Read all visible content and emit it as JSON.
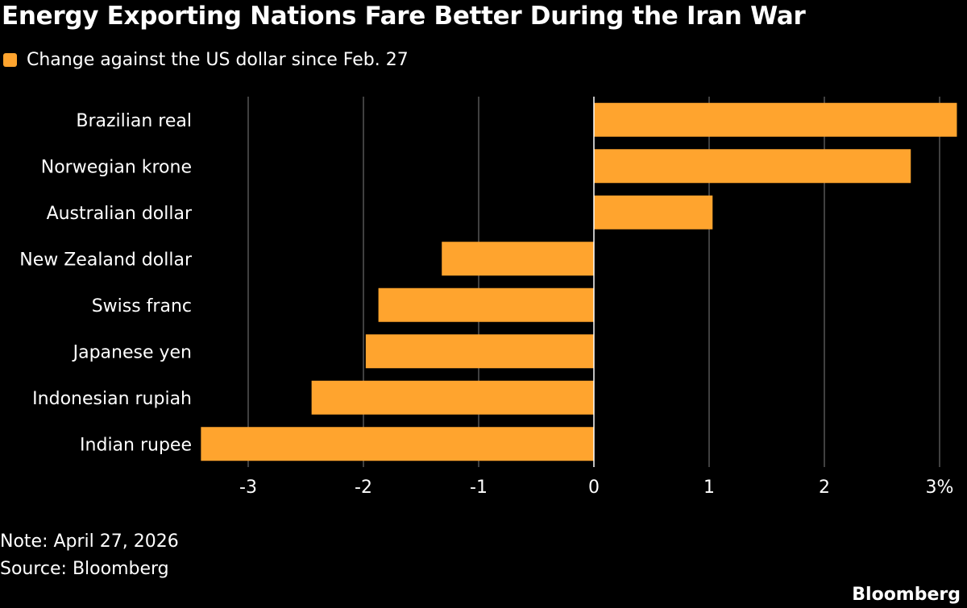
{
  "title": "Energy Exporting Nations Fare Better During the Iran War",
  "legend_label": "Change against the US dollar since Feb. 27",
  "note": "Note: April 27, 2026",
  "source": "Source: Bloomberg",
  "logo": "Bloomberg",
  "colors": {
    "bar": "#ffa42e",
    "background": "#000000",
    "grid": "#555555"
  },
  "chart_data": {
    "type": "bar",
    "orientation": "horizontal",
    "categories": [
      "Brazilian real",
      "Norwegian krone",
      "Australian dollar",
      "New Zealand dollar",
      "Swiss franc",
      "Japanese yen",
      "Indonesian rupiah",
      "Indian rupee"
    ],
    "series": [
      {
        "name": "Change against the US dollar since Feb. 27",
        "values": [
          3.15,
          2.75,
          1.03,
          -1.32,
          -1.87,
          -1.98,
          -2.45,
          -3.41
        ]
      }
    ],
    "xlim": [
      -3.5,
      3.2
    ],
    "xticks": [
      -3,
      -2,
      -1,
      0,
      1,
      2,
      3
    ],
    "xtick_labels": [
      "-3",
      "-2",
      "-1",
      "0",
      "1",
      "2",
      "3%"
    ],
    "grid": "vertical",
    "legend": "top-left"
  }
}
